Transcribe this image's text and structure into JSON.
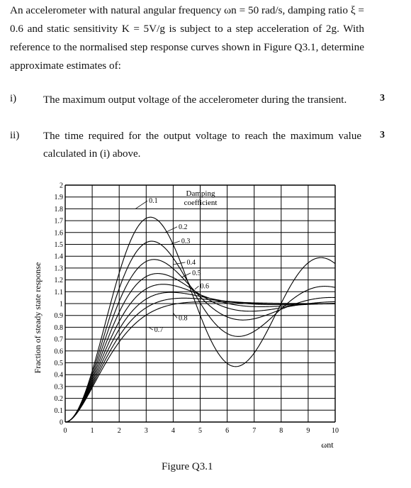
{
  "question": {
    "intro": "An accelerometer with natural angular frequency ωn = 50 rad/s, damping ratio ξ = 0.6 and static sensitivity K = 5V/g is subject to a step acceleration of 2g. With reference to the normalised step response curves shown in Figure Q3.1, determine approximate estimates of:",
    "parts": [
      {
        "num": "i)",
        "text": "The maximum output voltage of the accelerometer during the transient.",
        "marks": "3"
      },
      {
        "num": "ii)",
        "text": "The time required for the output voltage to reach the maximum value calculated in (i) above.",
        "marks": "3"
      }
    ]
  },
  "figure": {
    "caption": "Figure Q3.1",
    "legend_title_line1": "Damping",
    "legend_title_line2": "coefficient"
  },
  "chart_data": {
    "type": "line",
    "ylabel": "Fraction of steady state response",
    "xlabel": "ωnt",
    "xlim": [
      0,
      10
    ],
    "ylim": [
      0,
      2
    ],
    "x_ticks": [
      "0",
      "1",
      "2",
      "3",
      "4",
      "5",
      "6",
      "7",
      "8",
      "9",
      "10"
    ],
    "y_ticks": [
      "0",
      "0.1",
      "0.2",
      "0.3",
      "0.4",
      "0.5",
      "0.6",
      "0.7",
      "0.8",
      "0.9",
      "1",
      "1.1",
      "1.2",
      "1.3",
      "1.4",
      "1.5",
      "1.6",
      "1.7",
      "1.8",
      "1.9",
      "2"
    ],
    "grid": true,
    "series": [
      {
        "name": "0.1",
        "damping": 0.1
      },
      {
        "name": "0.2",
        "damping": 0.2
      },
      {
        "name": "0.3",
        "damping": 0.3
      },
      {
        "name": "0.4",
        "damping": 0.4
      },
      {
        "name": "0.5",
        "damping": 0.5
      },
      {
        "name": "0.6",
        "damping": 0.6
      },
      {
        "name": "0.7",
        "damping": 0.7
      },
      {
        "name": "0.8",
        "damping": 0.8
      }
    ]
  }
}
